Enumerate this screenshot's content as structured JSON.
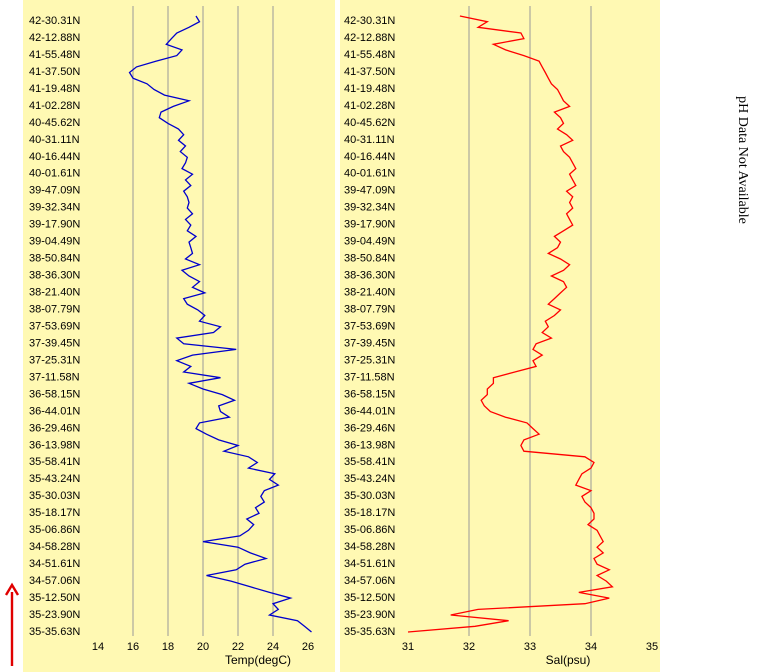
{
  "note": "pH Data Not Available",
  "colors": {
    "panel_bg": "#fff9b3",
    "temp_line": "#0000cc",
    "sal_line": "#ff0000",
    "grid": "#999999",
    "arrow": "#e00000"
  },
  "arrow_icon": "up-arrow-icon",
  "chart_data": [
    {
      "type": "line",
      "xlabel": "Temp(degC)",
      "ylabel": "",
      "xlim": [
        14,
        26
      ],
      "xticks": [
        "14",
        "16",
        "18",
        "20",
        "22",
        "24",
        "26"
      ],
      "ylabels": [
        "42-30.31N",
        "42-12.88N",
        "41-55.48N",
        "41-37.50N",
        "41-19.48N",
        "41-02.28N",
        "40-45.62N",
        "40-31.11N",
        "40-16.44N",
        "40-01.61N",
        "39-47.09N",
        "39-32.34N",
        "39-17.90N",
        "39-04.49N",
        "38-50.84N",
        "38-36.30N",
        "38-21.40N",
        "38-07.79N",
        "37-53.69N",
        "37-39.45N",
        "37-25.31N",
        "37-11.58N",
        "36-58.15N",
        "36-44.01N",
        "36-29.46N",
        "36-13.98N",
        "35-58.41N",
        "35-43.24N",
        "35-30.03N",
        "35-18.17N",
        "35-06.86N",
        "34-58.28N",
        "34-51.61N",
        "34-57.06N",
        "35-12.50N",
        "35-23.90N",
        "35-35.63N"
      ],
      "series": [
        {
          "values": [
            19.6,
            19.8,
            19.2,
            18.5,
            18.2,
            17.9,
            18.8,
            18.5,
            17.3,
            16.2,
            15.8,
            16.0,
            16.8,
            17.2,
            17.8,
            19.2,
            18.3,
            17.6,
            17.5,
            18.0,
            18.6,
            18.9,
            18.6,
            19.0,
            18.7,
            19.1,
            19.0,
            18.8,
            19.4,
            19.0,
            19.3,
            18.9,
            19.1,
            19.2,
            19.1,
            19.4,
            19.0,
            19.3,
            19.1,
            19.6,
            19.2,
            19.3,
            19.4,
            19.0,
            19.8,
            18.8,
            19.2,
            19.8,
            19.4,
            20.1,
            18.9,
            19.1,
            19.7,
            20.1,
            19.8,
            21.0,
            20.6,
            18.5,
            18.9,
            21.9,
            19.4,
            18.5,
            19.3,
            18.9,
            21.0,
            19.2,
            20.0,
            21.1,
            21.8,
            20.9,
            21.0,
            21.5,
            19.8,
            19.6,
            20.2,
            20.9,
            22.0,
            21.2,
            22.6,
            23.1,
            22.6,
            24.1,
            23.8,
            24.3,
            23.5,
            23.3,
            23.5,
            23.0,
            23.2,
            22.5,
            22.9,
            22.6,
            22.1,
            20.0,
            22.0,
            22.7,
            23.6,
            22.4,
            21.9,
            20.2,
            21.6,
            22.7,
            23.8,
            25.0,
            24.0,
            24.3,
            23.8,
            25.4,
            25.8,
            26.2
          ]
        }
      ]
    },
    {
      "type": "line",
      "xlabel": "Sal(psu)",
      "ylabel": "",
      "xlim": [
        31,
        35
      ],
      "xticks": [
        "31",
        "32",
        "33",
        "34",
        "35"
      ],
      "ylabels": [
        "42-30.31N",
        "42-12.88N",
        "41-55.48N",
        "41-37.50N",
        "41-19.48N",
        "41-02.28N",
        "40-45.62N",
        "40-31.11N",
        "40-16.44N",
        "40-01.61N",
        "39-47.09N",
        "39-32.34N",
        "39-17.90N",
        "39-04.49N",
        "38-50.84N",
        "38-36.30N",
        "38-21.40N",
        "38-07.79N",
        "37-53.69N",
        "37-39.45N",
        "37-25.31N",
        "37-11.58N",
        "36-58.15N",
        "36-44.01N",
        "36-29.46N",
        "36-13.98N",
        "35-58.41N",
        "35-43.24N",
        "35-30.03N",
        "35-18.17N",
        "35-06.86N",
        "34-58.28N",
        "34-51.61N",
        "34-57.06N",
        "35-12.50N",
        "35-23.90N",
        "35-35.63N"
      ],
      "series": [
        {
          "values": [
            31.85,
            32.3,
            32.15,
            32.85,
            32.9,
            32.4,
            32.6,
            32.9,
            33.15,
            33.2,
            33.25,
            33.3,
            33.35,
            33.45,
            33.5,
            33.55,
            33.65,
            33.4,
            33.5,
            33.55,
            33.45,
            33.6,
            33.7,
            33.5,
            33.55,
            33.65,
            33.7,
            33.75,
            33.65,
            33.7,
            33.75,
            33.6,
            33.7,
            33.65,
            33.7,
            33.6,
            33.65,
            33.7,
            33.55,
            33.4,
            33.5,
            33.45,
            33.3,
            33.5,
            33.65,
            33.55,
            33.35,
            33.55,
            33.6,
            33.5,
            33.4,
            33.3,
            33.5,
            33.4,
            33.25,
            33.3,
            33.2,
            33.35,
            33.1,
            33.05,
            33.2,
            33.05,
            33.1,
            32.75,
            32.4,
            32.4,
            32.3,
            32.3,
            32.2,
            32.25,
            32.35,
            32.6,
            32.95,
            33.05,
            33.15,
            32.9,
            32.85,
            32.9,
            33.9,
            34.05,
            34.0,
            33.85,
            33.8,
            33.75,
            34.0,
            33.85,
            33.9,
            34.0,
            34.05,
            34.05,
            33.95,
            34.1,
            34.15,
            34.2,
            34.1,
            34.2,
            34.05,
            34.1,
            34.3,
            34.1,
            34.25,
            34.35,
            33.8,
            34.3,
            33.9,
            32.15,
            31.7,
            32.65,
            32.1,
            31.0
          ]
        }
      ]
    }
  ]
}
